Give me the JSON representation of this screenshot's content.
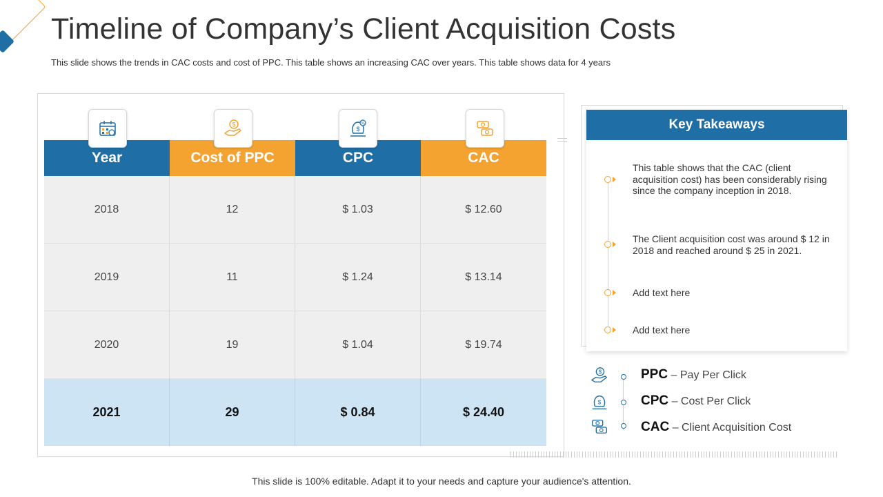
{
  "title": "Timeline of Company’s Client Acquisition Costs",
  "subtitle": "This slide shows the trends in CAC costs and cost of PPC.  This table shows  an increasing CAC  over years. This table shows data for 4 years",
  "table": {
    "headers": [
      "Year",
      "Cost of PPC",
      "CPC",
      "CAC"
    ],
    "header_colors": [
      "#1f6fa6",
      "#f4a330",
      "#1f6fa6",
      "#f4a330"
    ],
    "icons": [
      "calendar-icon",
      "hand-coin-icon",
      "money-bag-icon",
      "money-exchange-icon"
    ],
    "rows": [
      [
        "2018",
        "12",
        "$ 1.03",
        "$ 12.60"
      ],
      [
        "2019",
        "11",
        "$ 1.24",
        "$ 13.14"
      ],
      [
        "2020",
        "19",
        "$ 1.04",
        "$ 19.74"
      ],
      [
        "2021",
        "29",
        "$ 0.84",
        "$ 24.40"
      ]
    ]
  },
  "takeaways": {
    "title": "Key Takeaways",
    "items": [
      "This table shows that the CAC (client acquisition cost) has been considerably rising since the company inception in 2018.",
      "The Client acquisition cost was around $ 12 in 2018 and reached around $ 25 in 2021.",
      "Add text here",
      "Add text here"
    ]
  },
  "legend": [
    {
      "abbr": "PPC",
      "desc": "– Pay Per Click",
      "icon": "hand-coin-icon"
    },
    {
      "abbr": "CPC",
      "desc": "– Cost Per Click",
      "icon": "money-bag-icon"
    },
    {
      "abbr": "CAC",
      "desc": "– Client Acquisition Cost",
      "icon": "money-exchange-icon"
    }
  ],
  "footer": "This slide is 100% editable. Adapt it to your needs and capture your audience's attention.",
  "colors": {
    "blue": "#1f6fa6",
    "orange": "#f4a330",
    "highlight": "#cde4f4"
  }
}
